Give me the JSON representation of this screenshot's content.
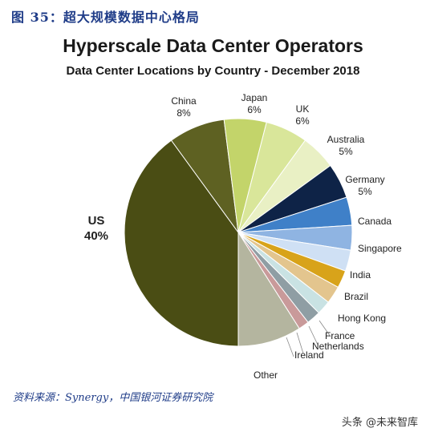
{
  "figure": {
    "title": "图 35：超大规模数据中心格局",
    "source": "资料来源：Synergy，中国银河证券研究院",
    "watermark": "头条 @未来智库"
  },
  "chart_data": {
    "type": "pie",
    "title": "Hyperscale Data Center Operators",
    "subtitle": "Data Center Locations by Country - December 2018",
    "slices": [
      {
        "name": "US",
        "value": 40,
        "value_label": "40%",
        "color": "#4a4d14"
      },
      {
        "name": "China",
        "value": 8,
        "value_label": "8%",
        "color": "#5e6122"
      },
      {
        "name": "Japan",
        "value": 6,
        "value_label": "6%",
        "color": "#c3d46a"
      },
      {
        "name": "UK",
        "value": 6,
        "value_label": "6%",
        "color": "#d9e69a"
      },
      {
        "name": "Australia",
        "value": 5,
        "value_label": "5%",
        "color": "#e9f0c4"
      },
      {
        "name": "Germany",
        "value": 5,
        "value_label": "5%",
        "color": "#0e2347"
      },
      {
        "name": "Canada",
        "value": 4,
        "value_label": "",
        "color": "#3f80c8"
      },
      {
        "name": "Singapore",
        "value": 3.5,
        "value_label": "",
        "color": "#8fb4e2"
      },
      {
        "name": "India",
        "value": 3,
        "value_label": "",
        "color": "#cfe0f4"
      },
      {
        "name": "Brazil",
        "value": 2.5,
        "value_label": "",
        "color": "#d8a31a"
      },
      {
        "name": "Hong Kong",
        "value": 2.5,
        "value_label": "",
        "color": "#e3c58e"
      },
      {
        "name": "France",
        "value": 2,
        "value_label": "",
        "color": "#c9e2e3"
      },
      {
        "name": "Netherlands",
        "value": 2,
        "value_label": "",
        "color": "#8f9ea4"
      },
      {
        "name": "Ireland",
        "value": 1.5,
        "value_label": "",
        "color": "#c99a9a"
      },
      {
        "name": "Other",
        "value": 9,
        "value_label": "",
        "color": "#b4b59f"
      }
    ]
  }
}
